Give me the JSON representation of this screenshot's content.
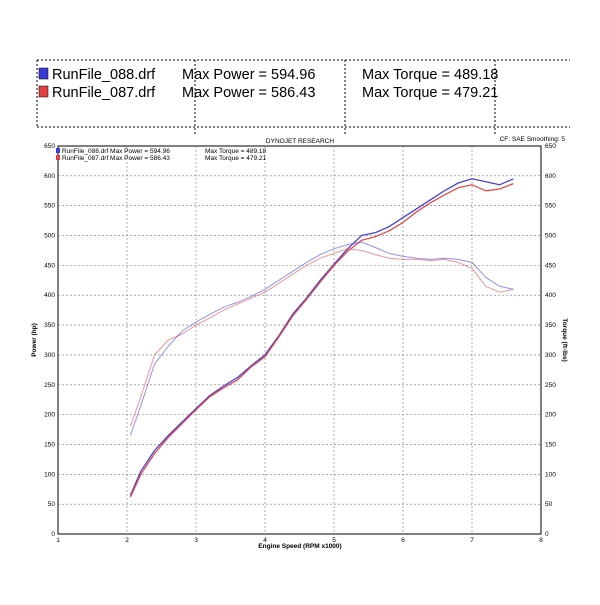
{
  "header": {
    "runs": [
      {
        "file": "RunFile_088.drf",
        "power_label": "Max Power = 594.96",
        "torque_label": "Max Torque = 489.18",
        "color": "#3a3ad8"
      },
      {
        "file": "RunFile_087.drf",
        "power_label": "Max Power = 586.43",
        "torque_label": "Max Torque = 479.21",
        "color": "#e04040"
      }
    ]
  },
  "chart_data": {
    "type": "line",
    "title": "DYNOJET RESEARCH",
    "corner_note": "CF: SAE  Smoothing: 5",
    "xlabel": "Engine Speed  (RPM x1000)",
    "ylabel_left": "Power (hp)",
    "ylabel_right": "Torque (ft-lbs)",
    "xlim": [
      1,
      8
    ],
    "ylim": [
      0,
      650
    ],
    "x_ticks": [
      1,
      2,
      3,
      4,
      5,
      6,
      7,
      8
    ],
    "y_ticks": [
      0,
      50,
      100,
      150,
      200,
      250,
      300,
      350,
      400,
      450,
      500,
      550,
      600,
      650
    ],
    "grid": true,
    "legend": [
      {
        "label": "RunFile_088.drf  Max Power = 594.96",
        "torque": "Max Torque = 489.18",
        "color": "#3a3ad8"
      },
      {
        "label": "RunFile_087.drf  Max Power = 586.43",
        "torque": "Max Torque = 479.21",
        "color": "#e04040"
      }
    ],
    "series": [
      {
        "name": "RunFile_088.drf",
        "metric": "Power",
        "color": "#3a3ad8",
        "x": [
          2.05,
          2.2,
          2.4,
          2.6,
          2.8,
          3.0,
          3.2,
          3.4,
          3.6,
          3.8,
          4.0,
          4.2,
          4.4,
          4.6,
          4.8,
          5.0,
          5.2,
          5.4,
          5.6,
          5.8,
          6.0,
          6.2,
          6.4,
          6.6,
          6.8,
          7.0,
          7.2,
          7.4,
          7.6
        ],
        "y": [
          65,
          105,
          140,
          165,
          188,
          210,
          232,
          248,
          262,
          282,
          300,
          332,
          368,
          395,
          425,
          452,
          478,
          500,
          505,
          515,
          530,
          545,
          560,
          575,
          588,
          595,
          590,
          585,
          595
        ]
      },
      {
        "name": "RunFile_087.drf",
        "metric": "Power",
        "color": "#e04040",
        "x": [
          2.05,
          2.2,
          2.4,
          2.6,
          2.8,
          3.0,
          3.2,
          3.4,
          3.6,
          3.8,
          4.0,
          4.2,
          4.4,
          4.6,
          4.8,
          5.0,
          5.2,
          5.4,
          5.6,
          5.8,
          6.0,
          6.2,
          6.4,
          6.6,
          6.8,
          7.0,
          7.2,
          7.4,
          7.6
        ],
        "y": [
          62,
          100,
          135,
          162,
          185,
          208,
          230,
          245,
          258,
          280,
          297,
          330,
          365,
          393,
          422,
          450,
          474,
          492,
          498,
          508,
          522,
          540,
          555,
          568,
          580,
          585,
          575,
          578,
          587
        ]
      },
      {
        "name": "RunFile_088.drf",
        "metric": "Torque",
        "color": "#3a3ad8",
        "x": [
          2.05,
          2.2,
          2.4,
          2.6,
          2.8,
          3.0,
          3.2,
          3.4,
          3.6,
          3.8,
          4.0,
          4.2,
          4.4,
          4.6,
          4.8,
          5.0,
          5.2,
          5.4,
          5.6,
          5.8,
          6.0,
          6.2,
          6.4,
          6.6,
          6.8,
          7.0,
          7.2,
          7.4,
          7.6
        ],
        "y": [
          165,
          215,
          285,
          315,
          340,
          355,
          368,
          380,
          388,
          398,
          410,
          425,
          440,
          455,
          468,
          478,
          485,
          489,
          480,
          470,
          465,
          462,
          460,
          462,
          460,
          455,
          430,
          415,
          410
        ]
      },
      {
        "name": "RunFile_087.drf",
        "metric": "Torque",
        "color": "#e04040",
        "x": [
          2.05,
          2.2,
          2.4,
          2.6,
          2.8,
          3.0,
          3.2,
          3.4,
          3.6,
          3.8,
          4.0,
          4.2,
          4.4,
          4.6,
          4.8,
          5.0,
          5.2,
          5.4,
          5.6,
          5.8,
          6.0,
          6.2,
          6.4,
          6.6,
          6.8,
          7.0,
          7.2,
          7.4,
          7.6
        ],
        "y": [
          180,
          230,
          300,
          325,
          335,
          350,
          362,
          375,
          385,
          395,
          405,
          420,
          435,
          450,
          462,
          470,
          478,
          475,
          468,
          462,
          460,
          460,
          458,
          460,
          455,
          445,
          415,
          405,
          410
        ]
      }
    ]
  }
}
